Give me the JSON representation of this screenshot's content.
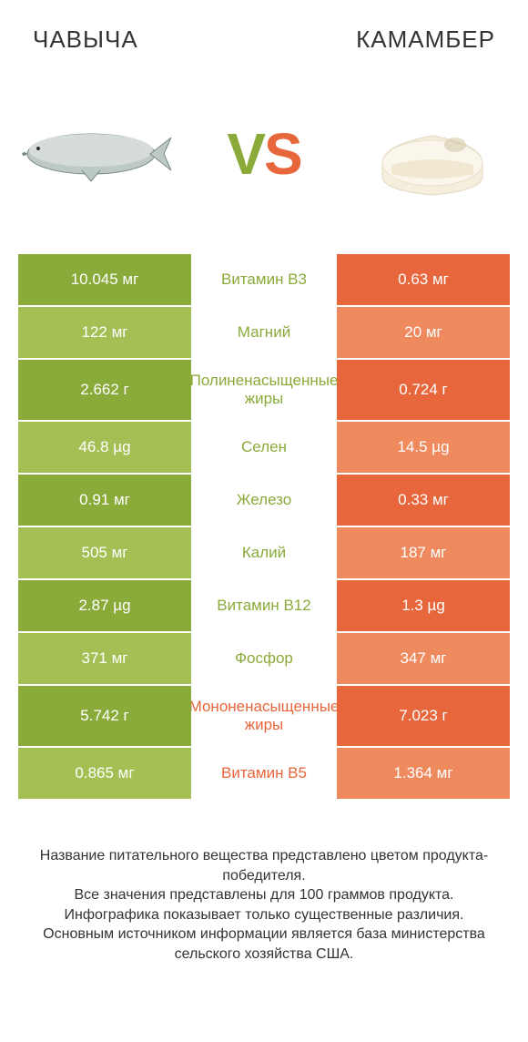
{
  "colors": {
    "green_dark": "#8aab3a",
    "green_light": "#a4c054",
    "orange_dark": "#e8663c",
    "orange_light": "#ef8a5e",
    "text": "#333333",
    "background": "#ffffff"
  },
  "header": {
    "left": "ЧАВЫЧА",
    "right": "КАМАМБЕР",
    "vs_v": "V",
    "vs_s": "S"
  },
  "comparison": {
    "type": "table",
    "columns": [
      "left_value",
      "nutrient",
      "right_value"
    ],
    "left_color_wins": "#8aab3a",
    "right_color_wins": "#e8663c",
    "row_alt_lighten": true,
    "rows": [
      {
        "left": "10.045 мг",
        "mid": "Витамин B3",
        "right": "0.63 мг",
        "winner": "left"
      },
      {
        "left": "122 мг",
        "mid": "Магний",
        "right": "20 мг",
        "winner": "left"
      },
      {
        "left": "2.662 г",
        "mid": "Полиненасыщенные жиры",
        "right": "0.724 г",
        "winner": "left",
        "tall": true
      },
      {
        "left": "46.8 µg",
        "mid": "Селен",
        "right": "14.5 µg",
        "winner": "left"
      },
      {
        "left": "0.91 мг",
        "mid": "Железо",
        "right": "0.33 мг",
        "winner": "left"
      },
      {
        "left": "505 мг",
        "mid": "Калий",
        "right": "187 мг",
        "winner": "left"
      },
      {
        "left": "2.87 µg",
        "mid": "Витамин B12",
        "right": "1.3 µg",
        "winner": "left"
      },
      {
        "left": "371 мг",
        "mid": "Фосфор",
        "right": "347 мг",
        "winner": "left"
      },
      {
        "left": "5.742 г",
        "mid": "Мононенасыщенные жиры",
        "right": "7.023 г",
        "winner": "right",
        "tall": true
      },
      {
        "left": "0.865 мг",
        "mid": "Витамин B5",
        "right": "1.364 мг",
        "winner": "right"
      }
    ]
  },
  "footer": {
    "line1": "Название питательного вещества представлено цветом продукта-победителя.",
    "line2": "Все значения представлены для 100 граммов продукта.",
    "line3": "Инфографика показывает только существенные различия.",
    "line4": "Основным источником информации является база министерства сельского хозяйства США."
  }
}
